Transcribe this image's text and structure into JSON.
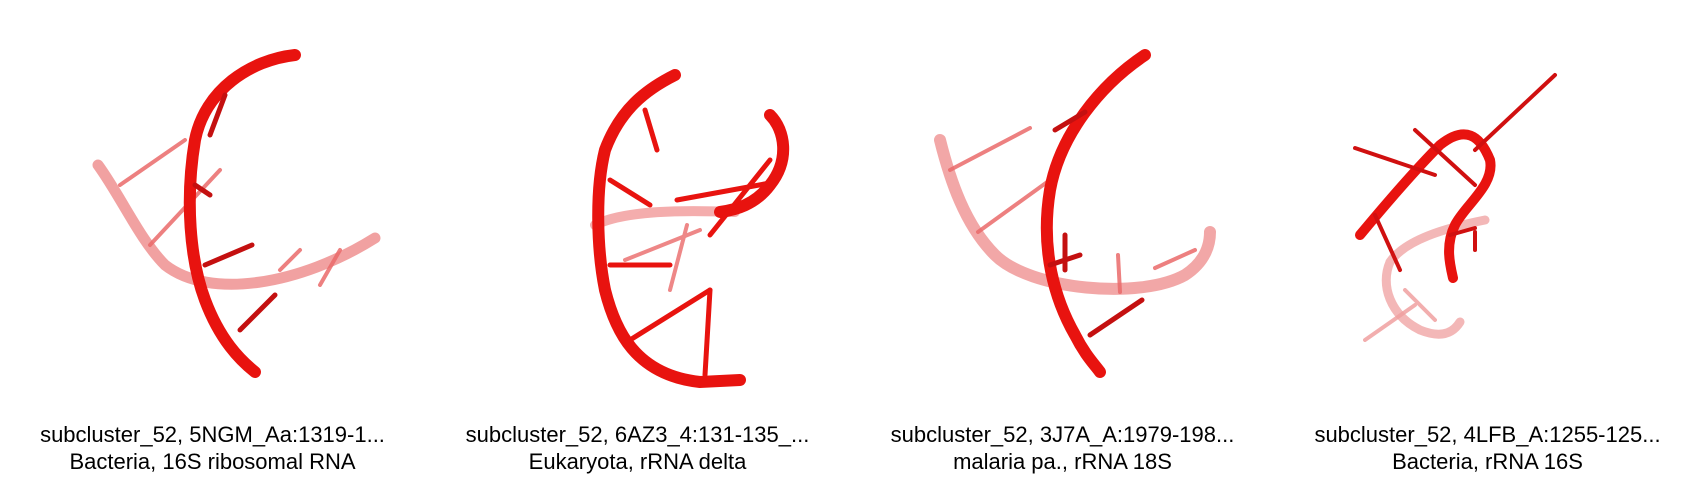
{
  "panels": [
    {
      "title": "subcluster_52, 5NGM_Aa:1319-1...",
      "subtitle": "Bacteria, 16S ribosomal RNA"
    },
    {
      "title": "subcluster_52, 6AZ3_4:131-135_...",
      "subtitle": "Eukaryota, rRNA delta"
    },
    {
      "title": "subcluster_52, 3J7A_A:1979-198...",
      "subtitle": "malaria pa., rRNA 18S"
    },
    {
      "title": "subcluster_52, 4LFB_A:1255-125...",
      "subtitle": "Bacteria, rRNA 16S"
    }
  ],
  "colors": {
    "backbone": "#e8130f",
    "backbone_dark": "#b80c0c",
    "backbone_faded": "#ef7a7a"
  }
}
